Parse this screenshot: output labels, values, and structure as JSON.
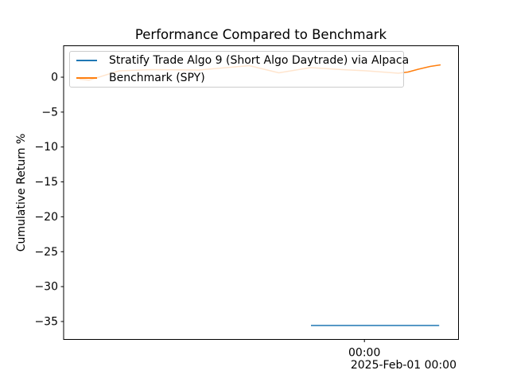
{
  "figure": {
    "background": "#ffffff",
    "text_color": "#000000",
    "axes_color": "#000000"
  },
  "chart_data": {
    "type": "line",
    "title": "Performance Compared to Benchmark",
    "xlabel": "",
    "ylabel": "Cumulative Return %",
    "grid": false,
    "x_axis": {
      "tick_labels": [
        {
          "pos": 0.789,
          "label": "00:00"
        }
      ],
      "offset_label": "2025-Feb-01 00:00"
    },
    "y_axis": {
      "range_shown": [
        -37.6,
        4.5
      ],
      "ticks": [
        {
          "value": 0,
          "label": "0"
        },
        {
          "value": -5,
          "label": "−5"
        },
        {
          "value": -10,
          "label": "−10"
        },
        {
          "value": -15,
          "label": "−15"
        },
        {
          "value": -20,
          "label": "−20"
        },
        {
          "value": -25,
          "label": "−25"
        },
        {
          "value": -30,
          "label": "−30"
        },
        {
          "value": -35,
          "label": "−35"
        }
      ]
    },
    "legend": {
      "location": "upper left",
      "frame_alpha": 0.8
    },
    "series": [
      {
        "name": "Stratify Trade Algo 9 (Short Algo Daytrade) via Alpaca",
        "color": "#1f77b4",
        "points": [
          [
            0.641,
            -35.57
          ],
          [
            0.996,
            -35.57
          ]
        ]
      },
      {
        "name": "Benchmark (SPY)",
        "color": "#ff7f0e",
        "points": [
          [
            0.0,
            -0.29
          ],
          [
            0.026,
            -0.43
          ],
          [
            0.11,
            0.91
          ],
          [
            0.199,
            1.08
          ],
          [
            0.331,
            1.03
          ],
          [
            0.47,
            1.65
          ],
          [
            0.552,
            0.63
          ],
          [
            0.64,
            1.37
          ],
          [
            0.728,
            1.08
          ],
          [
            0.795,
            0.91
          ],
          [
            0.883,
            0.57
          ],
          [
            0.91,
            0.74
          ],
          [
            0.938,
            1.14
          ],
          [
            0.971,
            1.54
          ],
          [
            1.0,
            1.77
          ]
        ]
      }
    ]
  }
}
